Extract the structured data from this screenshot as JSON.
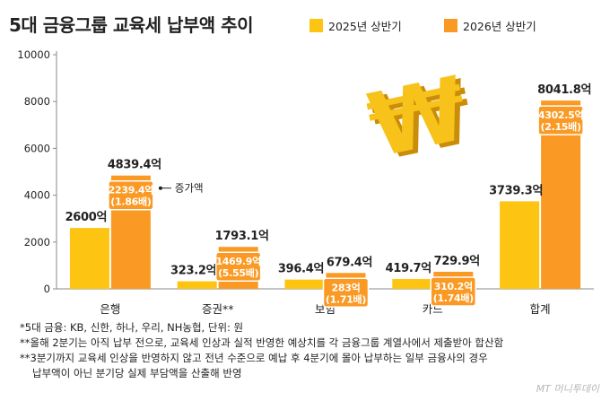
{
  "colors": {
    "series_2025": "#fdc512",
    "series_2026": "#fa9a24",
    "callout_bg": "#fa9a24",
    "callout_text": "#ffffff",
    "won_symbol": "#f7c21a"
  },
  "chart_data": {
    "type": "bar",
    "title": "5대 금융그룹 교육세 납부액 추이",
    "categories": [
      "은행",
      "증권**",
      "보험",
      "카드",
      "합계"
    ],
    "series": [
      {
        "name": "2025년 상반기",
        "values": [
          2600,
          323.2,
          396.4,
          419.7,
          3739.3
        ]
      },
      {
        "name": "2026년 상반기",
        "values": [
          4839.4,
          1793.1,
          679.4,
          729.9,
          8041.8
        ]
      }
    ],
    "value_labels": {
      "series_2025": [
        "2600억",
        "323.2억",
        "396.4억",
        "419.7억",
        "3739.3억"
      ],
      "series_2026": [
        "4839.4억",
        "1793.1억",
        "679.4억",
        "729.9억",
        "8041.8억"
      ]
    },
    "increases": [
      {
        "amount": "2239.4억",
        "ratio": "(1.86배)"
      },
      {
        "amount": "1469.9억",
        "ratio": "(5.55배)"
      },
      {
        "amount": "283억",
        "ratio": "(1.71배)"
      },
      {
        "amount": "310.2억",
        "ratio": "(1.74배)"
      },
      {
        "amount": "4302.5억",
        "ratio": "(2.15배)"
      }
    ],
    "increase_legend": "증가액",
    "y_ticks": [
      "0",
      "2000",
      "4000",
      "6000",
      "8000",
      "10000"
    ],
    "ylim": [
      0,
      10000
    ],
    "grid": false,
    "legend_position": "top-right"
  },
  "notes": [
    "*5대 금융: KB, 신한, 하나, 우리, NH농협, 단위: 원",
    "**올해 2분기는 아직 납부 전으로, 교육세 인상과 실적 반영한 예상치를 각 금융그룹 계열사에서 제출받아 합산함",
    "**3분기까지 교육세 인상을 반영하지 않고 전년 수준으로 예납 후 4분기에 몰아 납부하는 일부 금융사의 경우",
    "납부액이 아닌 분기당 실제 부담액을 산출해 반영"
  ],
  "watermark": "MT 머니투데이"
}
